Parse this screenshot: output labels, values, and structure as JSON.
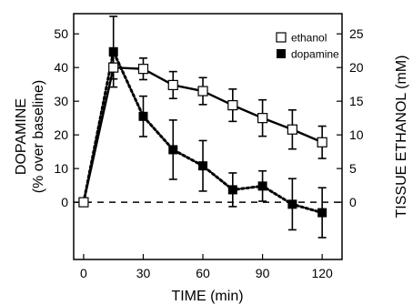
{
  "chart_data": {
    "type": "line",
    "title": "",
    "xlabel": "TIME (min)",
    "ylabel_left": [
      "DOPAMINE",
      "(% over baseline)"
    ],
    "ylabel_right": "TISSUE ETHANOL (mM)",
    "xlim": [
      -5,
      130
    ],
    "ylim_left": [
      -17,
      56
    ],
    "ylim_right": [
      -8.5,
      28
    ],
    "xticks": [
      0,
      30,
      60,
      90,
      120
    ],
    "yticks_left": [
      0,
      10,
      20,
      30,
      40,
      50
    ],
    "yticks_right": [
      0,
      5,
      10,
      15,
      20,
      25
    ],
    "baseline": 0,
    "legend_position": "top-right",
    "series": [
      {
        "name": "ethanol",
        "axis": "right",
        "marker": "open-square",
        "line": "solid",
        "x": [
          0,
          15,
          30,
          45,
          60,
          75,
          90,
          105,
          120
        ],
        "y": [
          0,
          20.0,
          19.8,
          17.4,
          16.5,
          14.4,
          12.5,
          10.8,
          8.9
        ],
        "err": [
          0,
          1.7,
          1.6,
          2.0,
          2.0,
          2.4,
          2.7,
          2.9,
          2.4
        ]
      },
      {
        "name": "dopamine",
        "axis": "left",
        "marker": "filled-square",
        "line": "dotted",
        "x": [
          0,
          15,
          30,
          45,
          60,
          75,
          90,
          105,
          120
        ],
        "y": [
          0,
          44.7,
          25.5,
          15.6,
          10.8,
          3.7,
          4.8,
          -0.6,
          -3.1
        ],
        "err": [
          0,
          10.5,
          6.0,
          8.8,
          7.5,
          5.0,
          4.5,
          7.6,
          7.4
        ]
      }
    ]
  }
}
